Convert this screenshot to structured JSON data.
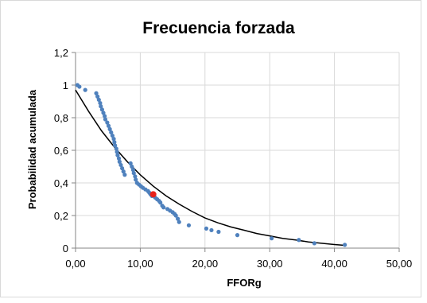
{
  "chart_data": {
    "type": "scatter",
    "title": "Frecuencia forzada",
    "xlabel": "FFORg",
    "ylabel": "Probabilidad acumulada",
    "xlim": [
      0,
      50
    ],
    "ylim": [
      0,
      1.2
    ],
    "x_ticks": [
      "0,00",
      "10,00",
      "20,00",
      "30,00",
      "40,00",
      "50,00"
    ],
    "y_ticks": [
      "0",
      "0,2",
      "0,4",
      "0,6",
      "0,8",
      "1",
      "1,2"
    ],
    "grid": true,
    "legend": "none",
    "colors": {
      "points": "#4f81bd",
      "curve": "#000000",
      "highlight": "#e8211a",
      "grid": "#d9d9d9",
      "axis": "#868686"
    },
    "series": [
      {
        "type": "scatter",
        "points": [
          [
            0.3,
            1.0
          ],
          [
            0.6,
            0.99
          ],
          [
            1.5,
            0.97
          ],
          [
            3.2,
            0.95
          ],
          [
            3.4,
            0.93
          ],
          [
            3.6,
            0.91
          ],
          [
            3.8,
            0.89
          ],
          [
            3.9,
            0.87
          ],
          [
            4.1,
            0.85
          ],
          [
            4.3,
            0.83
          ],
          [
            4.5,
            0.81
          ],
          [
            4.6,
            0.79
          ],
          [
            4.9,
            0.77
          ],
          [
            5.1,
            0.75
          ],
          [
            5.3,
            0.73
          ],
          [
            5.5,
            0.71
          ],
          [
            5.7,
            0.69
          ],
          [
            5.9,
            0.67
          ],
          [
            6.0,
            0.65
          ],
          [
            6.1,
            0.63
          ],
          [
            6.3,
            0.61
          ],
          [
            6.4,
            0.59
          ],
          [
            6.5,
            0.57
          ],
          [
            6.7,
            0.55
          ],
          [
            6.8,
            0.53
          ],
          [
            7.0,
            0.51
          ],
          [
            7.2,
            0.49
          ],
          [
            7.4,
            0.47
          ],
          [
            7.6,
            0.45
          ],
          [
            8.5,
            0.52
          ],
          [
            8.7,
            0.5
          ],
          [
            8.9,
            0.48
          ],
          [
            9.0,
            0.46
          ],
          [
            9.2,
            0.44
          ],
          [
            9.3,
            0.42
          ],
          [
            9.5,
            0.4
          ],
          [
            9.8,
            0.39
          ],
          [
            10.1,
            0.38
          ],
          [
            10.4,
            0.37
          ],
          [
            10.8,
            0.36
          ],
          [
            11.2,
            0.35
          ],
          [
            11.4,
            0.34
          ],
          [
            11.6,
            0.33
          ],
          [
            11.8,
            0.32
          ],
          [
            12.3,
            0.31
          ],
          [
            12.6,
            0.3
          ],
          [
            12.9,
            0.29
          ],
          [
            13.1,
            0.28
          ],
          [
            13.4,
            0.26
          ],
          [
            13.6,
            0.25
          ],
          [
            14.2,
            0.24
          ],
          [
            14.6,
            0.23
          ],
          [
            15.0,
            0.22
          ],
          [
            15.3,
            0.21
          ],
          [
            15.5,
            0.2
          ],
          [
            15.8,
            0.18
          ],
          [
            16.0,
            0.16
          ],
          [
            17.5,
            0.14
          ],
          [
            20.2,
            0.12
          ],
          [
            21.0,
            0.11
          ],
          [
            22.1,
            0.1
          ],
          [
            25.0,
            0.08
          ],
          [
            30.3,
            0.06
          ],
          [
            34.5,
            0.05
          ],
          [
            36.9,
            0.03
          ],
          [
            41.6,
            0.02
          ]
        ]
      },
      {
        "type": "line",
        "points": [
          [
            0,
            0.97
          ],
          [
            2,
            0.84
          ],
          [
            4,
            0.72
          ],
          [
            6,
            0.62
          ],
          [
            8,
            0.53
          ],
          [
            10,
            0.45
          ],
          [
            12,
            0.38
          ],
          [
            14,
            0.32
          ],
          [
            16,
            0.27
          ],
          [
            18,
            0.225
          ],
          [
            20,
            0.185
          ],
          [
            22,
            0.155
          ],
          [
            24,
            0.13
          ],
          [
            26,
            0.11
          ],
          [
            28,
            0.09
          ],
          [
            30,
            0.075
          ],
          [
            32,
            0.06
          ],
          [
            34,
            0.05
          ],
          [
            36,
            0.038
          ],
          [
            38,
            0.03
          ],
          [
            40,
            0.022
          ],
          [
            41.6,
            0.017
          ]
        ]
      },
      {
        "type": "highlight",
        "points": [
          [
            12.0,
            0.33
          ]
        ]
      }
    ]
  }
}
